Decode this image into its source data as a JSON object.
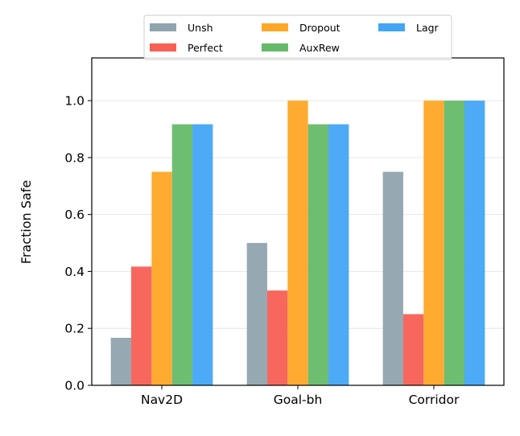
{
  "chart_data": {
    "type": "bar",
    "title": "",
    "xlabel": "",
    "ylabel": "Fraction Safe",
    "categories": [
      "Nav2D",
      "Goal-bh",
      "Corridor"
    ],
    "series": [
      {
        "name": "Unsh",
        "color": "#90a4ae",
        "values": [
          0.167,
          0.5,
          0.75
        ]
      },
      {
        "name": "Perfect",
        "color": "#f85f55",
        "values": [
          0.417,
          0.333,
          0.25
        ]
      },
      {
        "name": "Dropout",
        "color": "#ffa726",
        "values": [
          0.75,
          1.0,
          1.0
        ]
      },
      {
        "name": "AuxRew",
        "color": "#66bb6a",
        "values": [
          0.917,
          0.917,
          1.0
        ]
      },
      {
        "name": "Lagr",
        "color": "#42a5f5",
        "values": [
          0.917,
          0.917,
          1.0
        ]
      }
    ],
    "ylim": [
      0,
      1.15
    ],
    "yticks": [
      "0.0",
      "0.2",
      "0.4",
      "0.6",
      "0.8",
      "1.0"
    ],
    "grid": "y",
    "legend": {
      "placement": "top-center, above plot",
      "columns": 3
    }
  }
}
